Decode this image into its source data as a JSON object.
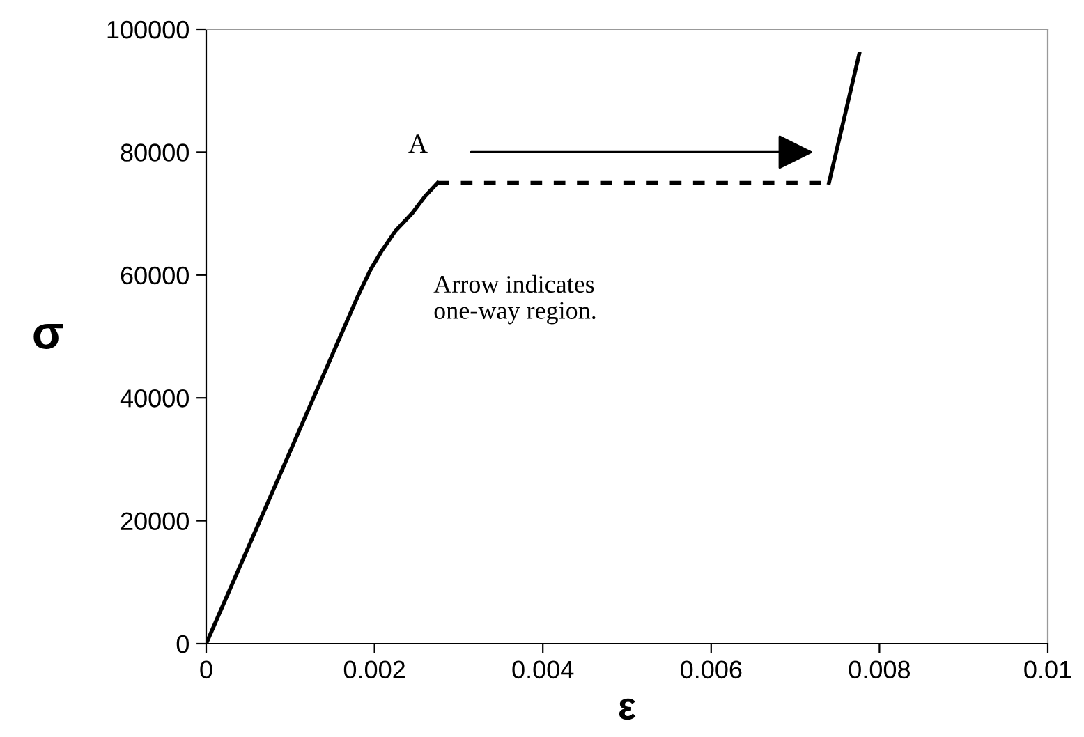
{
  "chart_data": {
    "type": "line",
    "xlabel": "ε",
    "ylabel": "σ",
    "xlim": [
      0,
      0.01
    ],
    "ylim": [
      0,
      100000
    ],
    "xticks": [
      0,
      0.002,
      0.004,
      0.006,
      0.008,
      0.01
    ],
    "yticks": [
      0,
      20000,
      40000,
      60000,
      80000,
      100000
    ],
    "grid": false,
    "legend": false,
    "marker": "none",
    "series": [
      {
        "color": "#000000",
        "line_style": "solid",
        "x": [
          0,
          0.0018,
          0.00195,
          0.00208,
          0.00225,
          0.00245,
          0.0026,
          0.00275
        ],
        "values": [
          0,
          56500,
          60800,
          63800,
          67200,
          70100,
          72800,
          75000
        ]
      },
      {
        "color": "#000000",
        "line_style": "dashed",
        "x": [
          0.00275,
          0.0074
        ],
        "values": [
          75000,
          75000
        ]
      },
      {
        "color": "#000000",
        "line_style": "solid",
        "x": [
          0.0074,
          0.00776
        ],
        "values": [
          75000,
          96000
        ]
      }
    ],
    "annotations": [
      "A",
      "Arrow indicates\none-way region."
    ]
  }
}
